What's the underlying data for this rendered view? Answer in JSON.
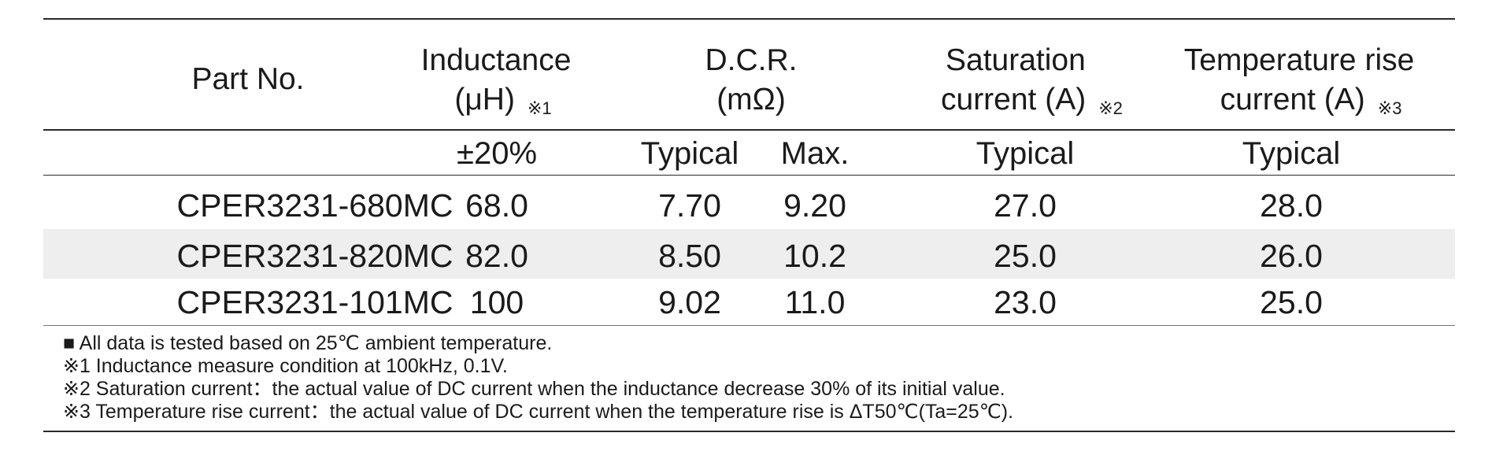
{
  "table": {
    "headers": {
      "part_no": "Part No.",
      "inductance_line1": "Inductance",
      "inductance_line2": "(μH)",
      "inductance_mark": "※1",
      "dcr_line1": "D.C.R.",
      "dcr_line2": "(mΩ)",
      "saturation_line1": "Saturation",
      "saturation_line2": "current (A)",
      "saturation_mark": "※2",
      "temp_line1": "Temperature rise",
      "temp_line2": "current (A)",
      "temp_mark": "※3"
    },
    "subheaders": {
      "inductance": "±20%",
      "dcr_typical": "Typical",
      "dcr_max": "Max.",
      "saturation": "Typical",
      "temp": "Typical"
    },
    "rows": [
      {
        "part": "CPER3231-680MC",
        "inductance": "68.0",
        "dcr_typ": "7.70",
        "dcr_max": "9.20",
        "sat": "27.0",
        "temp": "28.0"
      },
      {
        "part": "CPER3231-820MC",
        "inductance": "82.0",
        "dcr_typ": "8.50",
        "dcr_max": "10.2",
        "sat": "25.0",
        "temp": "26.0"
      },
      {
        "part": "CPER3231-101MC",
        "inductance": "100",
        "dcr_typ": "9.02",
        "dcr_max": "11.0",
        "sat": "23.0",
        "temp": "25.0"
      }
    ]
  },
  "notes": [
    "■  All data is tested based on 25℃ ambient temperature.",
    "※1 Inductance measure condition at 100kHz, 0.1V.",
    "※2 Saturation current：the actual value of DC current when the inductance decrease 30% of its initial value.",
    "※3 Temperature rise current：the actual value of DC current when the temperature rise is ΔT50℃(Ta=25℃)."
  ]
}
